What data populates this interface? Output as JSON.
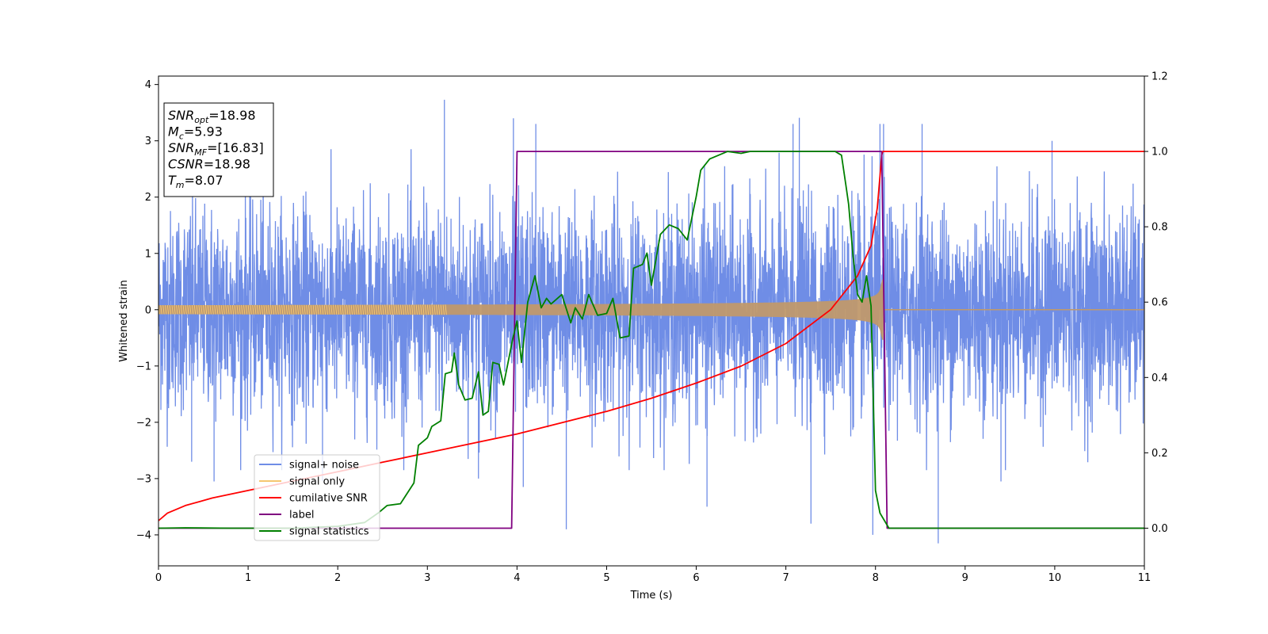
{
  "chart_data": {
    "type": "line",
    "xlabel": "Time (s)",
    "ylabel": "Whitened strain",
    "xlim": [
      0,
      11
    ],
    "ylim": [
      -4.55,
      4.15
    ],
    "y2lim": [
      -0.1,
      1.2
    ],
    "x_ticks": [
      0,
      1,
      2,
      3,
      4,
      5,
      6,
      7,
      8,
      9,
      10,
      11
    ],
    "y_ticks": [
      -4,
      -3,
      -2,
      -1,
      0,
      1,
      2,
      3,
      4
    ],
    "y2_ticks": [
      0.0,
      0.2,
      0.4,
      0.6,
      0.8,
      1.0,
      1.2
    ],
    "y2_tick_labels": [
      "0.0",
      "0.2",
      "0.4",
      "0.6",
      "0.8",
      "1.0",
      "1.2"
    ],
    "grid": false,
    "legend_position": "lower-left",
    "info_box": {
      "lines": [
        {
          "main": "SNR",
          "sub": "opt",
          "value": "=18.98"
        },
        {
          "main": "M",
          "sub": "c",
          "value": "=5.93"
        },
        {
          "main": "SNR",
          "sub": "MF",
          "value": "=[16.83]"
        },
        {
          "main": "CSNR",
          "sub": "",
          "value": "=18.98"
        },
        {
          "main": "T",
          "sub": "m",
          "value": "=8.07"
        }
      ]
    },
    "series": [
      {
        "name": "signal+ noise",
        "color": "#6f8de6",
        "axis": "left",
        "kind": "noise",
        "amplitude": 0.9,
        "extremes": [
          [
            3.19,
            3.73
          ],
          [
            3.96,
            3.4
          ],
          [
            4.21,
            3.3
          ],
          [
            7.15,
            3.41
          ],
          [
            7.08,
            3.3
          ],
          [
            8.05,
            3.3
          ],
          [
            8.09,
            3.3
          ],
          [
            8.52,
            3.3
          ],
          [
            9.97,
            3.0
          ],
          [
            0.37,
            -2.7
          ],
          [
            0.62,
            -3.05
          ],
          [
            3.57,
            -3.0
          ],
          [
            4.07,
            -3.15
          ],
          [
            4.55,
            -3.9
          ],
          [
            6.12,
            -3.5
          ],
          [
            7.28,
            -3.8
          ],
          [
            8.7,
            -4.15
          ],
          [
            7.97,
            -4.0
          ],
          [
            9.4,
            -3.05
          ],
          [
            1.83,
            -3.05
          ]
        ]
      },
      {
        "name": "signal only",
        "color": "#f5c770",
        "axis": "left",
        "kind": "chirp",
        "merger_time": 8.07,
        "start_amplitude": 0.08
      },
      {
        "name": "cumilative SNR",
        "color": "#ff0000",
        "axis": "right",
        "x": [
          0,
          0.1,
          0.3,
          0.6,
          1.0,
          1.5,
          2.0,
          2.5,
          3.0,
          3.5,
          4.0,
          4.5,
          5.0,
          5.5,
          6.0,
          6.5,
          7.0,
          7.5,
          7.8,
          7.95,
          8.02,
          8.07,
          8.08,
          11
        ],
        "values": [
          0.02,
          0.04,
          0.06,
          0.08,
          0.1,
          0.125,
          0.15,
          0.175,
          0.2,
          0.225,
          0.25,
          0.28,
          0.31,
          0.345,
          0.385,
          0.43,
          0.49,
          0.58,
          0.67,
          0.75,
          0.85,
          0.99,
          1.0,
          1.0
        ]
      },
      {
        "name": "label",
        "color": "#800080",
        "axis": "right",
        "x": [
          0,
          3.94,
          4.0,
          8.07,
          8.13,
          11
        ],
        "values": [
          0,
          0,
          1,
          1,
          0,
          0
        ]
      },
      {
        "name": "signal statistics",
        "color": "#008000",
        "axis": "right",
        "x": [
          0,
          0.3,
          0.8,
          1.5,
          2.0,
          2.3,
          2.45,
          2.55,
          2.7,
          2.85,
          2.9,
          3.0,
          3.05,
          3.15,
          3.2,
          3.27,
          3.3,
          3.35,
          3.42,
          3.5,
          3.57,
          3.62,
          3.68,
          3.73,
          3.8,
          3.85,
          3.9,
          3.95,
          4.0,
          4.05,
          4.12,
          4.2,
          4.27,
          4.33,
          4.38,
          4.5,
          4.6,
          4.65,
          4.73,
          4.8,
          4.9,
          5.0,
          5.07,
          5.15,
          5.25,
          5.3,
          5.4,
          5.45,
          5.5,
          5.6,
          5.7,
          5.8,
          5.9,
          6.0,
          6.05,
          6.15,
          6.25,
          6.35,
          6.5,
          6.6,
          6.7,
          6.8,
          7.0,
          7.2,
          7.4,
          7.55,
          7.62,
          7.67,
          7.7,
          7.75,
          7.8,
          7.85,
          7.9,
          7.95,
          8.0,
          8.05,
          8.15,
          11
        ],
        "values": [
          0,
          0.001,
          0,
          0,
          0.005,
          0.015,
          0.04,
          0.06,
          0.065,
          0.12,
          0.22,
          0.24,
          0.27,
          0.285,
          0.41,
          0.415,
          0.465,
          0.38,
          0.34,
          0.345,
          0.415,
          0.3,
          0.31,
          0.44,
          0.435,
          0.38,
          0.44,
          0.5,
          0.55,
          0.44,
          0.6,
          0.67,
          0.585,
          0.61,
          0.595,
          0.62,
          0.545,
          0.585,
          0.555,
          0.62,
          0.565,
          0.57,
          0.61,
          0.505,
          0.51,
          0.69,
          0.7,
          0.73,
          0.645,
          0.78,
          0.805,
          0.795,
          0.765,
          0.88,
          0.95,
          0.98,
          0.99,
          1.0,
          0.995,
          1.0,
          1.0,
          1.0,
          1.0,
          1.0,
          1.0,
          1.0,
          0.99,
          0.91,
          0.86,
          0.72,
          0.62,
          0.6,
          0.67,
          0.59,
          0.1,
          0.04,
          0.0,
          0.0
        ]
      }
    ]
  }
}
